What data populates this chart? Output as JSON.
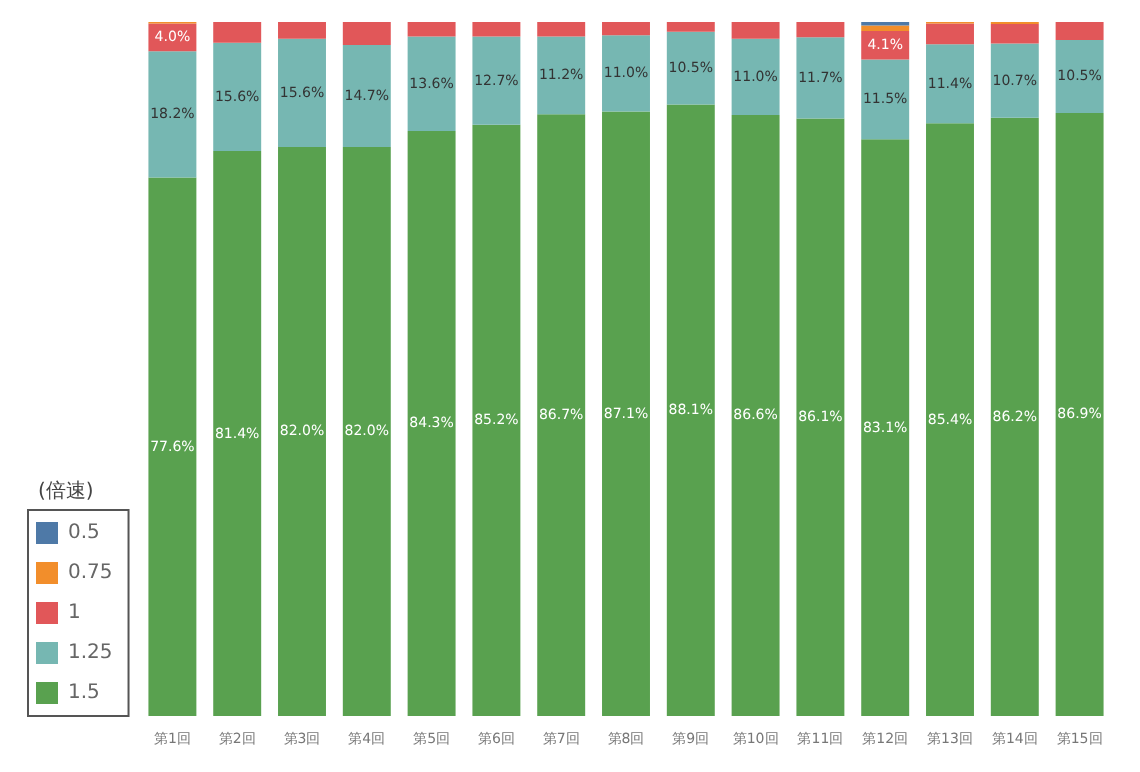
{
  "chart_data": {
    "type": "bar",
    "stacked": true,
    "legend_title": "(倍速)",
    "legend": "bottom left",
    "tick_labels": "x",
    "ylim": [
      0,
      100
    ],
    "categories": [
      "第1回",
      "第2回",
      "第3回",
      "第4回",
      "第5回",
      "第6回",
      "第7回",
      "第8回",
      "第9回",
      "第10回",
      "第11回",
      "第12回",
      "第13回",
      "第14回",
      "第15回"
    ],
    "series": [
      {
        "name": "1.5",
        "color": "#59a14f",
        "values": [
          77.6,
          81.4,
          82.0,
          82.0,
          84.3,
          85.2,
          86.7,
          87.1,
          88.1,
          86.6,
          86.1,
          83.1,
          85.4,
          86.2,
          86.9
        ],
        "value_labels": [
          "77.6%",
          "81.4%",
          "82.0%",
          "82.0%",
          "84.3%",
          "85.2%",
          "86.7%",
          "87.1%",
          "88.1%",
          "86.6%",
          "86.1%",
          "83.1%",
          "85.4%",
          "86.2%",
          "86.9%"
        ]
      },
      {
        "name": "1.25",
        "color": "#76b7b2",
        "values": [
          18.2,
          15.6,
          15.6,
          14.7,
          13.6,
          12.7,
          11.2,
          11.0,
          10.5,
          11.0,
          11.7,
          11.5,
          11.4,
          10.7,
          10.5
        ],
        "value_labels": [
          "18.2%",
          "15.6%",
          "15.6%",
          "14.7%",
          "13.6%",
          "12.7%",
          "11.2%",
          "11.0%",
          "10.5%",
          "11.0%",
          "11.7%",
          "11.5%",
          "11.4%",
          "10.7%",
          "10.5%"
        ]
      },
      {
        "name": "1",
        "color": "#e15759",
        "values": [
          4.0,
          3.0,
          2.4,
          3.3,
          2.1,
          2.1,
          2.1,
          1.9,
          1.4,
          2.4,
          2.2,
          4.1,
          3.0,
          2.8,
          2.6
        ],
        "value_labels": [
          "4.0%",
          null,
          null,
          null,
          null,
          null,
          null,
          null,
          null,
          null,
          null,
          "4.1%",
          null,
          null,
          null
        ]
      },
      {
        "name": "0.75",
        "color": "#f28e2b",
        "values": [
          0.2,
          0,
          0,
          0,
          0,
          0,
          0,
          0,
          0,
          0,
          0,
          0.8,
          0.2,
          0.3,
          0
        ]
      },
      {
        "name": "0.5",
        "color": "#4e79a7",
        "values": [
          0,
          0,
          0,
          0,
          0,
          0,
          0,
          0,
          0,
          0,
          0,
          0.5,
          0,
          0,
          0
        ]
      }
    ]
  }
}
